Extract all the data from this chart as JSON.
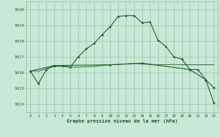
{
  "background_color": "#c8e8d8",
  "grid_color": "#88b898",
  "line_color": "#1a5c1a",
  "marker_color": "#1a5c1a",
  "xlabel": "Graphe pression niveau de la mer (hPa)",
  "xlabel_color": "#1a5c1a",
  "tick_color": "#1a5c1a",
  "ylim": [
    1013.5,
    1020.5
  ],
  "xlim": [
    -0.5,
    23.5
  ],
  "yticks": [
    1014,
    1015,
    1016,
    1017,
    1018,
    1019,
    1020
  ],
  "xticks": [
    0,
    1,
    2,
    3,
    4,
    5,
    6,
    7,
    8,
    9,
    10,
    11,
    12,
    13,
    14,
    15,
    16,
    17,
    18,
    19,
    20,
    21,
    22,
    23
  ],
  "series1_x": [
    0,
    1,
    2,
    3,
    4,
    5,
    6,
    7,
    8,
    9,
    10,
    11,
    12,
    13,
    14,
    15,
    16,
    17,
    18,
    19,
    20,
    21,
    22,
    23
  ],
  "series1_y": [
    1016.1,
    1015.3,
    1016.2,
    1016.45,
    1016.45,
    1016.35,
    1017.0,
    1017.5,
    1017.85,
    1018.4,
    1018.9,
    1019.55,
    1019.6,
    1019.6,
    1019.15,
    1019.2,
    1018.05,
    1017.65,
    1017.0,
    1016.85,
    1016.2,
    1016.2,
    1015.55,
    1015.05
  ],
  "series2_x": [
    0,
    1,
    2,
    3,
    4,
    5,
    6,
    7,
    8,
    9,
    10,
    11,
    12,
    13,
    14,
    15,
    16,
    17,
    18,
    19,
    20,
    21,
    22,
    23
  ],
  "series2_y": [
    1016.1,
    1016.1,
    1016.25,
    1016.4,
    1016.4,
    1016.35,
    1016.35,
    1016.38,
    1016.4,
    1016.45,
    1016.5,
    1016.52,
    1016.55,
    1016.58,
    1016.55,
    1016.52,
    1016.5,
    1016.5,
    1016.52,
    1016.5,
    1016.5,
    1016.5,
    1016.5,
    1016.5
  ],
  "series3_x": [
    0,
    3,
    10,
    14,
    20,
    22,
    23
  ],
  "series3_y": [
    1016.1,
    1016.45,
    1016.5,
    1016.6,
    1016.2,
    1015.55,
    1014.1
  ],
  "linewidth": 0.8,
  "markersize": 2.5,
  "tick_fontsize": 4,
  "xlabel_fontsize": 5
}
